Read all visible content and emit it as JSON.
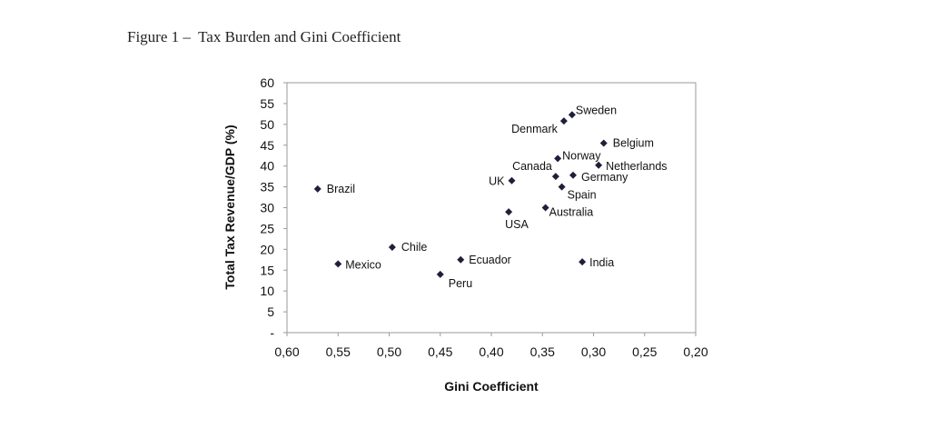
{
  "figure_title": "Figure 1 –  Tax Burden and Gini Coefficient",
  "chart_data": {
    "type": "scatter",
    "title": "",
    "xlabel": "Gini Coefficient",
    "ylabel": "Total Tax Revenue/GDP (%)",
    "xlim": [
      0.6,
      0.2
    ],
    "x_reversed": true,
    "ylim": [
      0,
      60
    ],
    "x_ticks": [
      "0,60",
      "0,55",
      "0,50",
      "0,45",
      "0,40",
      "0,35",
      "0,30",
      "0,25",
      "0,20"
    ],
    "y_ticks": [
      "-",
      "5",
      "10",
      "15",
      "20",
      "25",
      "30",
      "35",
      "40",
      "45",
      "50",
      "55",
      "60"
    ],
    "grid": false,
    "marker_color": "#1f1f3a",
    "points": [
      {
        "label": "Brazil",
        "x": 0.57,
        "y": 34.5
      },
      {
        "label": "Mexico",
        "x": 0.55,
        "y": 16.5
      },
      {
        "label": "Chile",
        "x": 0.497,
        "y": 20.5
      },
      {
        "label": "Peru",
        "x": 0.45,
        "y": 14.0
      },
      {
        "label": "Ecuador",
        "x": 0.43,
        "y": 17.5
      },
      {
        "label": "UK",
        "x": 0.38,
        "y": 36.5
      },
      {
        "label": "USA",
        "x": 0.383,
        "y": 29.0
      },
      {
        "label": "Australia",
        "x": 0.347,
        "y": 30.0
      },
      {
        "label": "Canada",
        "x": 0.337,
        "y": 37.5
      },
      {
        "label": "Spain",
        "x": 0.331,
        "y": 35.0
      },
      {
        "label": "Norway",
        "x": 0.335,
        "y": 41.8
      },
      {
        "label": "Denmark",
        "x": 0.329,
        "y": 50.8
      },
      {
        "label": "Sweden",
        "x": 0.321,
        "y": 52.3
      },
      {
        "label": "Germany",
        "x": 0.32,
        "y": 37.8
      },
      {
        "label": "India",
        "x": 0.311,
        "y": 17.0
      },
      {
        "label": "Netherlands",
        "x": 0.295,
        "y": 40.2
      },
      {
        "label": "Belgium",
        "x": 0.29,
        "y": 45.5
      }
    ]
  }
}
